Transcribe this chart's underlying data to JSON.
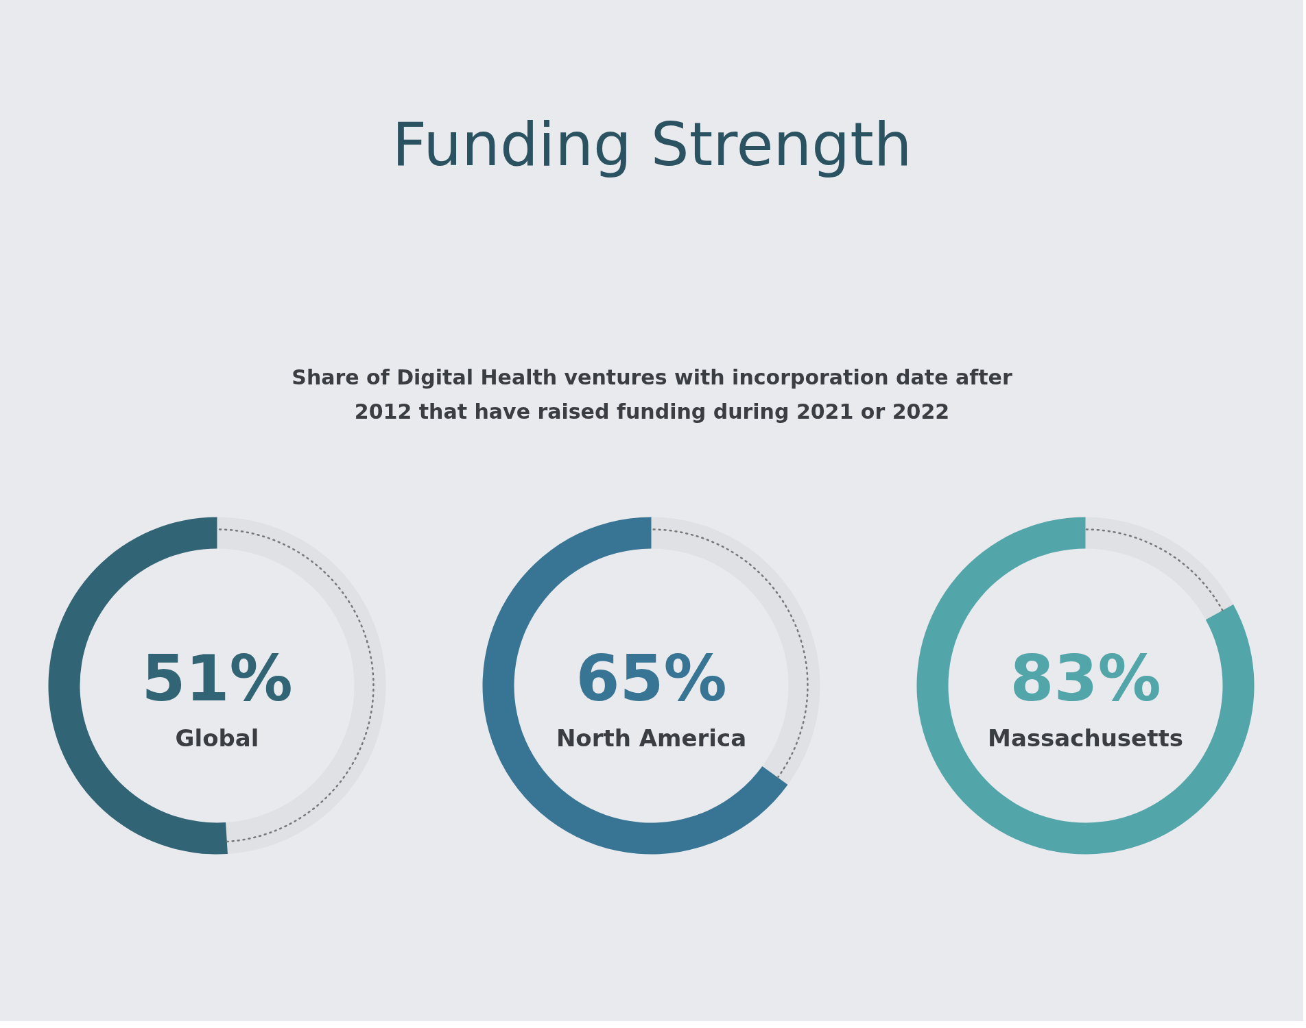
{
  "chart_data": [
    {
      "type": "other",
      "title": "Funding Strength",
      "subtitle": "Share of Digital Health ventures with incorporation date after\n2012 that have raised funding during 2021 or 2022"
    },
    {
      "type": "donut",
      "categories": [
        "Global",
        null
      ],
      "values": [
        51,
        49
      ],
      "colors": [
        "#316474",
        "#777777"
      ],
      "value_labels": [
        "51%",
        null
      ]
    },
    {
      "type": "donut",
      "categories": [
        "North America",
        null
      ],
      "values": [
        65,
        35
      ],
      "colors": [
        "#387594",
        "#777777"
      ],
      "value_labels": [
        "65%",
        null
      ]
    },
    {
      "type": "donut",
      "categories": [
        "Massachusetts",
        null
      ],
      "values": [
        83,
        17
      ],
      "colors": [
        "#52a5a9",
        "#777777"
      ],
      "value_labels": [
        "83%",
        null
      ]
    }
  ]
}
